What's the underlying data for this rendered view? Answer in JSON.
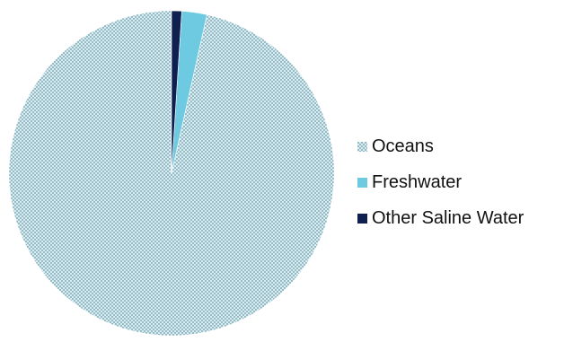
{
  "chart_data": {
    "type": "pie",
    "title": "",
    "legend_position": "right",
    "start_angle_deg": 0,
    "direction": "counterclockwise",
    "slices": [
      {
        "label": "Oceans",
        "value": 96.5,
        "color": "#d6eef4",
        "pattern": "dotted",
        "pattern_color": "#3d6b78"
      },
      {
        "label": "Freshwater",
        "value": 2.5,
        "color": "#6ecae0",
        "pattern": "solid"
      },
      {
        "label": "Other Saline Water",
        "value": 1.0,
        "color": "#0f1f4f",
        "pattern": "solid"
      }
    ]
  }
}
